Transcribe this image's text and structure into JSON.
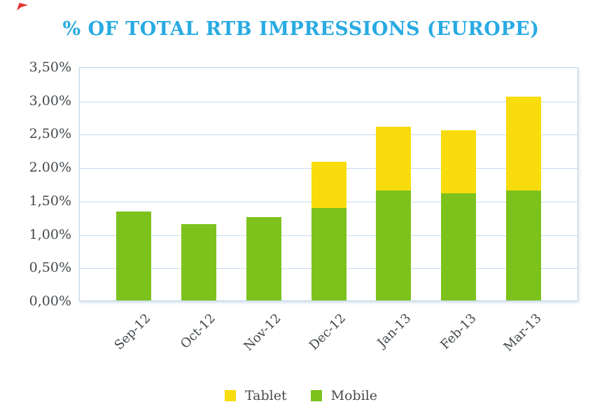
{
  "decorations": {
    "corner_mark_color": "#e43531"
  },
  "chart_data": {
    "type": "bar",
    "stacked": true,
    "title": "% OF TOTAL RTB IMPRESSIONS (EUROPE)",
    "title_color": "#29abe2",
    "categories": [
      "Sep-12",
      "Oct-12",
      "Nov-12",
      "Dec-12",
      "Jan-13",
      "Feb-13",
      "Mar-13"
    ],
    "series": [
      {
        "name": "Mobile",
        "color": "#7dc21c",
        "values": [
          1.33,
          1.14,
          1.25,
          1.38,
          1.65,
          1.6,
          1.65
        ]
      },
      {
        "name": "Tablet",
        "color": "#f8dc0c",
        "values": [
          0,
          0,
          0,
          0.7,
          0.95,
          0.95,
          1.4
        ]
      }
    ],
    "totals": [
      1.33,
      1.14,
      1.25,
      2.08,
      2.6,
      2.55,
      3.05
    ],
    "xlabel": "",
    "ylabel": "",
    "ylim": [
      0,
      3.5
    ],
    "y_tick_step": 0.5,
    "y_ticks_top_to_bottom": [
      "3,50%",
      "3,00%",
      "2,50%",
      "2.00%",
      "1,50%",
      "1,00%",
      "0,50%",
      "0,00%"
    ],
    "grid": true,
    "gridline_color": "#c9dcec",
    "axis_text_color": "#42484c",
    "legend_position": "bottom",
    "legend": [
      {
        "label": "Tablet",
        "color": "#f8dc0c"
      },
      {
        "label": "Mobile",
        "color": "#7dc21c"
      }
    ]
  }
}
